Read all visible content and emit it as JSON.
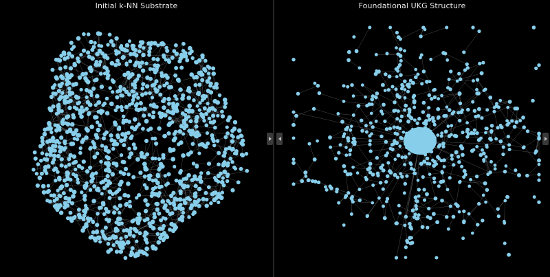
{
  "panels": [
    {
      "title": "Initial k-NN Substrate",
      "node_color": "#87ceeb",
      "edge_color": "#9a9a9a",
      "background": "#000000"
    },
    {
      "title": "Foundational UKG Structure",
      "node_color": "#87ceeb",
      "edge_color": "#9a9a9a",
      "background": "#000000"
    }
  ],
  "toggles": {
    "left_collapse": "chevron-right-icon",
    "right_expand": "chevron-left-icon",
    "right_collapse": "chevron-right-icon"
  }
}
